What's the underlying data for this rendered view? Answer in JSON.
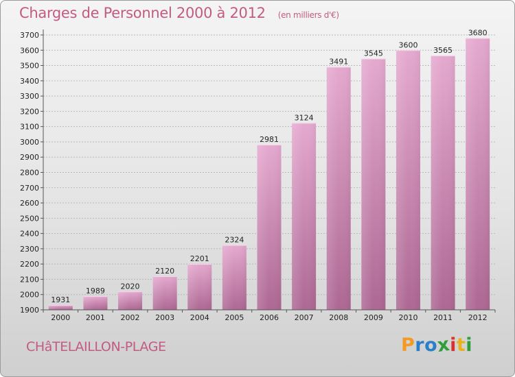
{
  "title": "Charges de Personnel 2000 à 2012",
  "subtitle": "(en milliers d'€)",
  "city": "CHâTELAILLON-PLAGE",
  "logo": {
    "letters": [
      "P",
      "r",
      "o",
      "x",
      "i",
      "t",
      "i"
    ],
    "colors": [
      "#f39a22",
      "#2a7fc9",
      "#2a7fc9",
      "#2f9e3a",
      "#d8322d",
      "#e9b21c",
      "#2f9e3a"
    ]
  },
  "colors": {
    "title": "#c25b82",
    "bar_top": "#e5a9cf",
    "bar_bottom": "#ad6893"
  },
  "chart_data": {
    "type": "bar",
    "categories": [
      "2000",
      "2001",
      "2002",
      "2003",
      "2004",
      "2005",
      "2006",
      "2007",
      "2008",
      "2009",
      "2010",
      "2011",
      "2012"
    ],
    "values": [
      1931,
      1989,
      2020,
      2120,
      2201,
      2324,
      2981,
      3124,
      3491,
      3545,
      3600,
      3565,
      3680
    ],
    "yticks": [
      1900,
      2000,
      2100,
      2200,
      2300,
      2400,
      2500,
      2600,
      2700,
      2800,
      2900,
      3000,
      3100,
      3200,
      3300,
      3400,
      3500,
      3600,
      3700
    ],
    "ylim": [
      1900,
      3700
    ],
    "grid": true,
    "data_labels": true,
    "title": "Charges de Personnel 2000 à 2012",
    "xlabel": "",
    "ylabel": ""
  }
}
